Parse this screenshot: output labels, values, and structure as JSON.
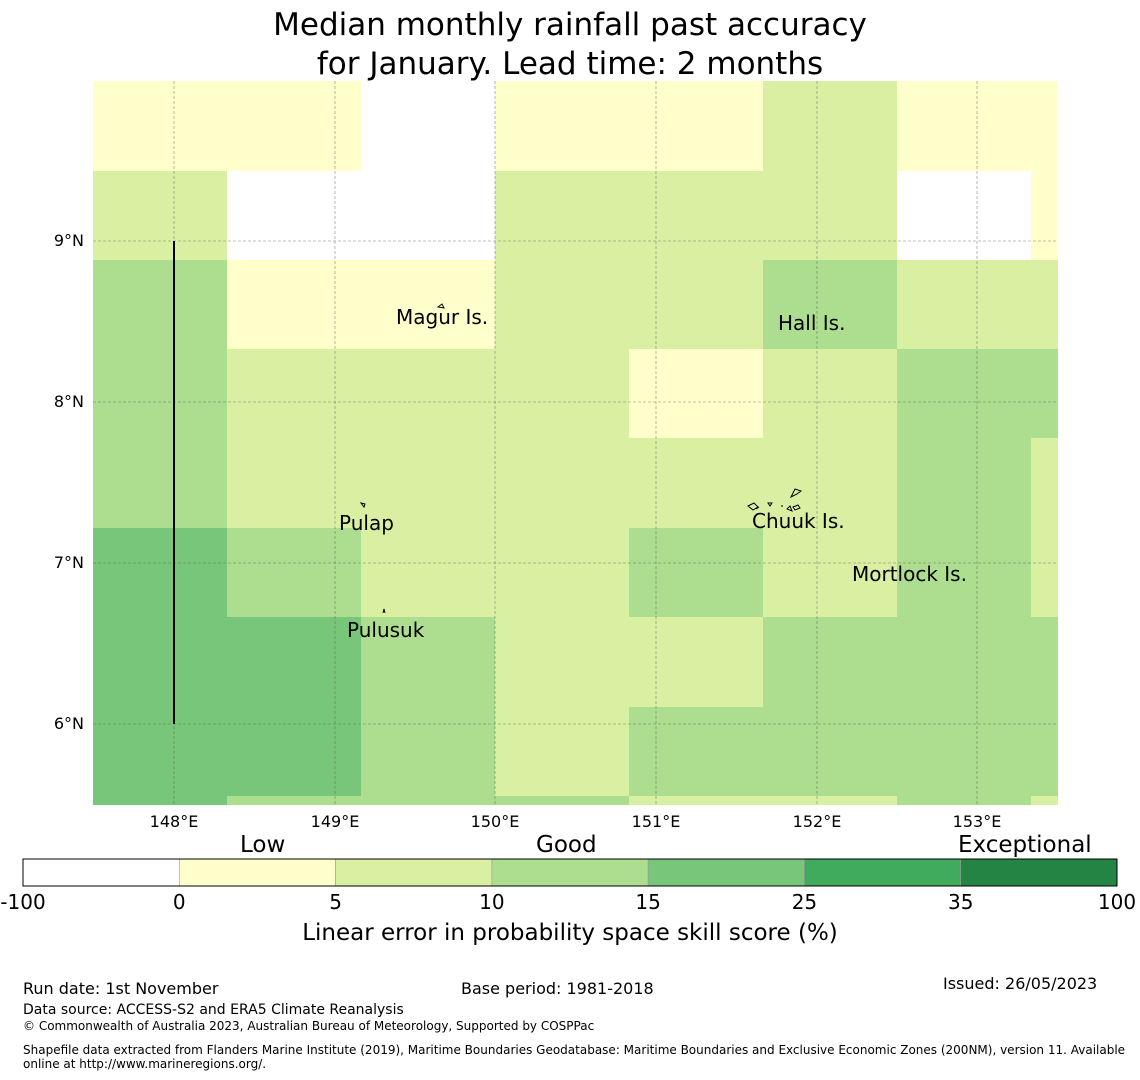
{
  "title": [
    "Median monthly rainfall past accuracy",
    "for January. Lead time: 2 months"
  ],
  "map": {
    "lon_ticks": [
      "148°E",
      "149°E",
      "150°E",
      "151°E",
      "152°E",
      "153°E"
    ],
    "lat_ticks": [
      "9°N",
      "8°N",
      "7°N",
      "6°N"
    ],
    "islands": [
      "Magur Is.",
      "Hall Is.",
      "Pulap",
      "Chuuk Is.",
      "Mortlock Is.",
      "Pulusuk"
    ],
    "cells": [
      [
        1,
        1,
        0,
        1,
        1,
        2,
        1,
        1
      ],
      [
        2,
        0,
        0,
        2,
        2,
        2,
        0,
        1
      ],
      [
        3,
        1,
        1,
        2,
        2,
        3,
        2,
        2
      ],
      [
        3,
        2,
        2,
        2,
        1,
        2,
        3,
        3
      ],
      [
        3,
        2,
        2,
        2,
        2,
        2,
        3,
        2
      ],
      [
        4,
        3,
        2,
        2,
        3,
        2,
        3,
        2
      ],
      [
        4,
        4,
        3,
        2,
        2,
        3,
        3,
        3
      ],
      [
        4,
        4,
        3,
        2,
        3,
        3,
        3,
        3
      ],
      [
        4,
        3,
        3,
        3,
        2,
        2,
        3,
        2
      ]
    ]
  },
  "colorbar": {
    "colors": [
      "#ffffff",
      "#ffffcc",
      "#d9f0a3",
      "#addd8e",
      "#78c679",
      "#41ab5d",
      "#238443"
    ],
    "ticks": [
      "-100",
      "0",
      "5",
      "10",
      "15",
      "25",
      "35",
      "100"
    ],
    "categories": [
      "Low",
      "Good",
      "Exceptional"
    ],
    "label": "Linear error in probability space skill score (%)"
  },
  "footer": {
    "run_date": "Run date: 1st November",
    "base_period": "Base period: 1981-2018",
    "issued": "Issued: 26/05/2023",
    "source": "Data source: ACCESS-S2 and ERA5 Climate Reanalysis",
    "copyright": "© Commonwealth of Australia 2023, Australian Bureau of Meteorology, Supported by COSPPac",
    "shapefile": "Shapefile data extracted from Flanders Marine Institute (2019), Maritime Boundaries Geodatabase: Maritime Boundaries and Exclusive Economic Zones (200NM), version 11. Available online at http://www.marineregions.org/."
  }
}
